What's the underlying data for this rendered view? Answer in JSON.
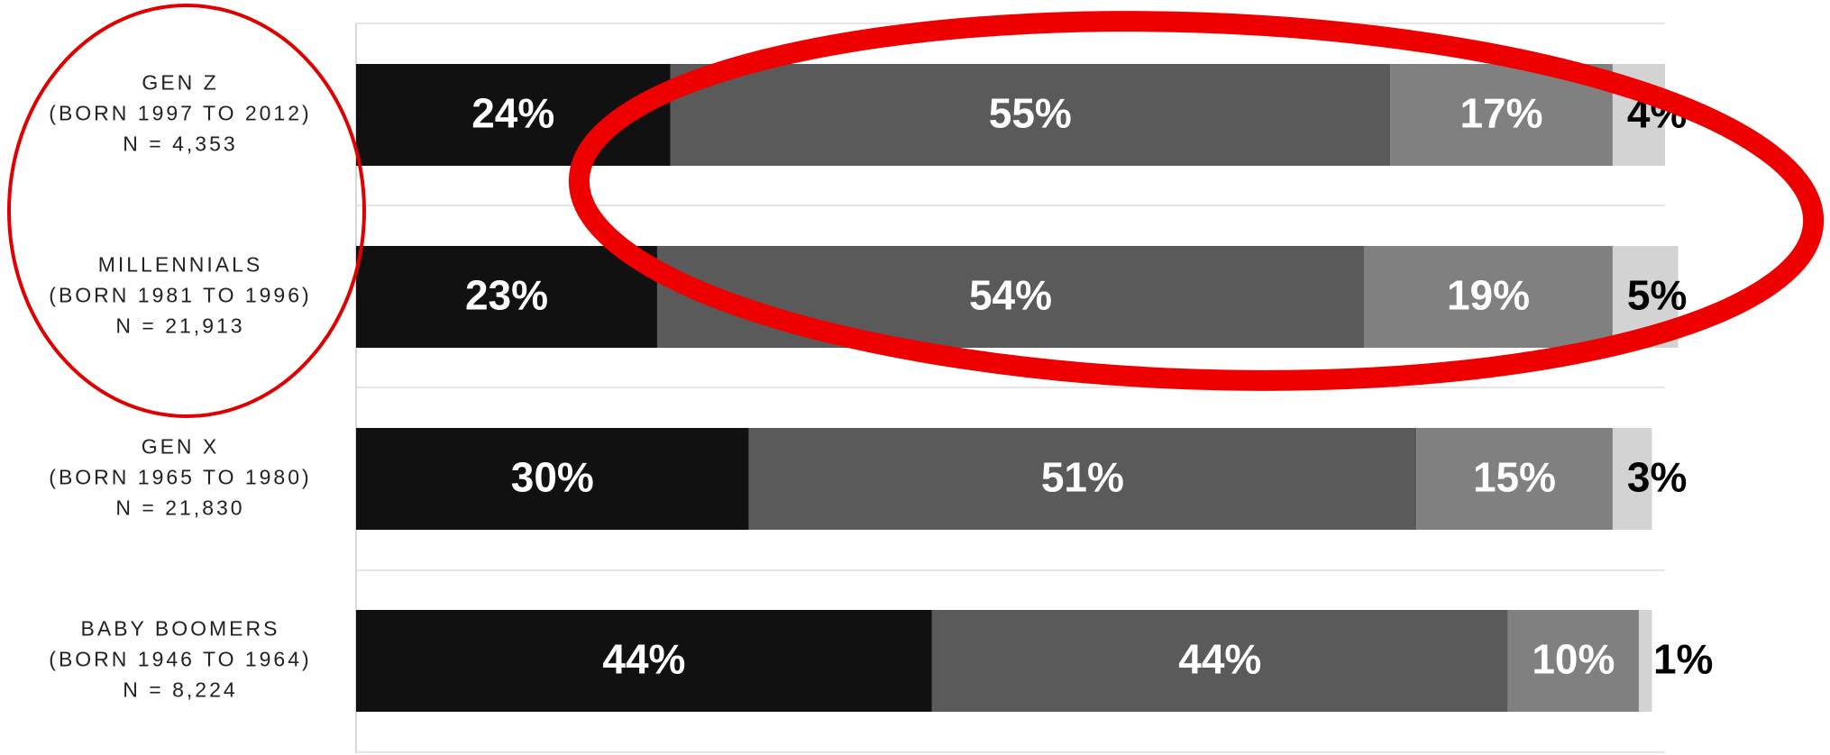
{
  "chart_data": {
    "type": "stacked-barh",
    "categories": [
      [
        "GEN Z",
        "(BORN 1997 TO 2012)",
        "N = 4,353"
      ],
      [
        "MILLENNIALS",
        "(BORN 1981 TO 1996)",
        "N = 21,913"
      ],
      [
        "GEN X",
        "(BORN 1965 TO 1980)",
        "N = 21,830"
      ],
      [
        "BABY BOOMERS",
        "(BORN 1946 TO 1964)",
        "N = 8,224"
      ]
    ],
    "series": [
      {
        "color": "#111111",
        "values": [
          24,
          23,
          30,
          44
        ],
        "value_labels": [
          "24%",
          "23%",
          "30%",
          "44%"
        ]
      },
      {
        "color": "#5a5a5a",
        "values": [
          55,
          54,
          51,
          44
        ],
        "value_labels": [
          "55%",
          "54%",
          "51%",
          "44%"
        ]
      },
      {
        "color": "#808080",
        "values": [
          17,
          19,
          15,
          10
        ],
        "value_labels": [
          "17%",
          "19%",
          "15%",
          "10%"
        ]
      },
      {
        "color": "#d3d3d3",
        "values": [
          4,
          5,
          3,
          1
        ],
        "value_labels": [
          "4%",
          "5%",
          "3%",
          "1%"
        ]
      }
    ],
    "xlim": [
      0,
      100
    ]
  }
}
